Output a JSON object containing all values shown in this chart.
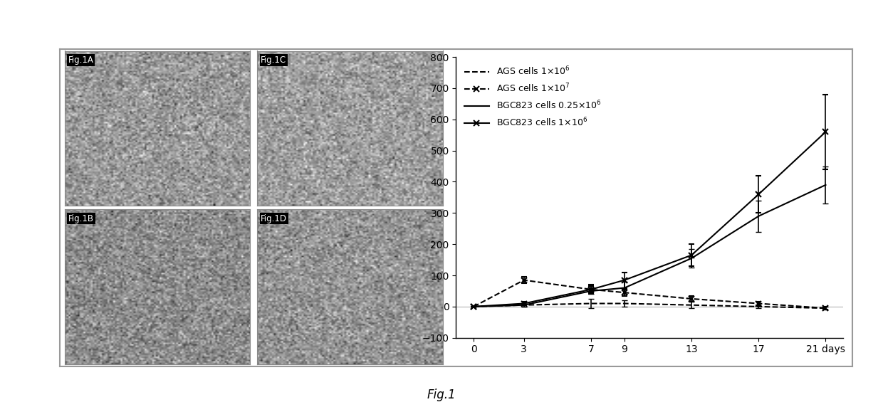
{
  "x_days": [
    0,
    3,
    7,
    9,
    13,
    17,
    21
  ],
  "ags_1e6": [
    0,
    5,
    10,
    10,
    5,
    0,
    -5
  ],
  "ags_1e6_err": [
    0,
    5,
    15,
    10,
    10,
    5,
    5
  ],
  "ags_1e7": [
    0,
    85,
    55,
    45,
    25,
    10,
    -5
  ],
  "ags_1e7_err": [
    0,
    10,
    10,
    10,
    10,
    5,
    5
  ],
  "bgc_025e6": [
    0,
    5,
    50,
    60,
    155,
    290,
    390
  ],
  "bgc_025e6_err": [
    0,
    5,
    10,
    20,
    30,
    50,
    60
  ],
  "bgc_1e6": [
    0,
    10,
    55,
    85,
    165,
    360,
    560
  ],
  "bgc_1e6_err": [
    0,
    5,
    15,
    25,
    35,
    60,
    120
  ],
  "ylim": [
    -100,
    800
  ],
  "yticks": [
    -100,
    0,
    100,
    200,
    300,
    400,
    500,
    600,
    700,
    800
  ],
  "xtick_labels": [
    "0",
    "3",
    "7",
    "9",
    "13",
    "17",
    "21 days"
  ],
  "panel_labels": [
    "Fig.1A",
    "Fig.1C",
    "Fig.1B",
    "Fig.1D"
  ],
  "fig_caption": "Fig.1",
  "bg_color": "#ffffff",
  "outer_border_color": "#999999",
  "gray_level_A": 0.6,
  "gray_level_B": 0.55,
  "gray_level_C": 0.62,
  "gray_level_D": 0.58,
  "lw": 1.5,
  "capsize": 3,
  "elinewidth": 1.2,
  "ms": 6
}
